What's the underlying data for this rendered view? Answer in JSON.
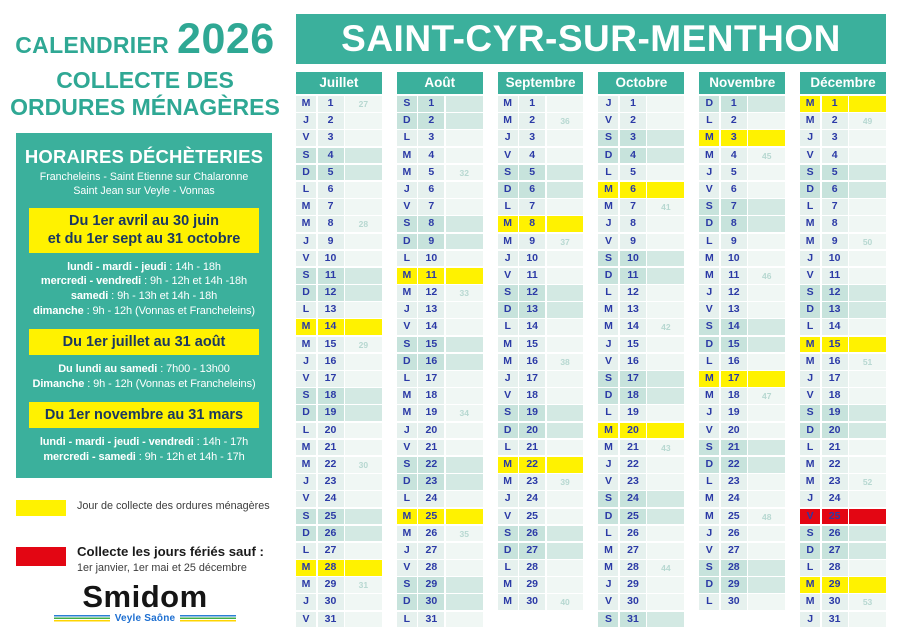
{
  "colors": {
    "teal": "#3BB09C",
    "yellow": "#FFF200",
    "red": "#E30613",
    "navy": "#2B3AA6"
  },
  "left_panel": {
    "title_small": "CALENDRIER",
    "title_year": "2026",
    "subtitle_line1": "COLLECTE DES",
    "subtitle_line2": "ORDURES MÉNAGÈRES",
    "dechetteries": {
      "title": "HORAIRES DÉCHÈTERIES",
      "sites_line1": "Francheleins - Saint Etienne sur Chalaronne",
      "sites_line2": "Saint Jean sur Veyle - Vonnas",
      "periods": [
        {
          "banner": [
            "Du 1er avril au 30 juin",
            "et du 1er sept au 31 octobre"
          ],
          "lines": [
            {
              "bold": "lundi - mardi - jeudi",
              "rest": " : 14h - 18h"
            },
            {
              "bold": "mercredi - vendredi",
              "rest": " : 9h - 12h et 14h -18h"
            },
            {
              "bold": "samedi",
              "rest": " : 9h - 13h et 14h - 18h"
            },
            {
              "bold": "dimanche",
              "rest": " : 9h - 12h (Vonnas et Francheleins)"
            }
          ]
        },
        {
          "banner": [
            "Du 1er juillet au 31 août"
          ],
          "lines": [
            {
              "bold": "Du lundi au samedi",
              "rest": " : 7h00 - 13h00"
            },
            {
              "bold": "Dimanche",
              "rest": " : 9h - 12h (Vonnas et Francheleins)"
            }
          ]
        },
        {
          "banner": [
            "Du 1er novembre au 31 mars"
          ],
          "lines": [
            {
              "bold": "lundi - mardi - jeudi - vendredi",
              "rest": " : 14h - 17h"
            },
            {
              "bold": "mercredi - samedi",
              "rest": " : 9h - 12h et 14h - 17h"
            }
          ]
        }
      ]
    },
    "legend": [
      {
        "color": "#FFF200",
        "swatch": "yellow",
        "text": "Jour de collecte des ordures ménagères"
      },
      {
        "color": "#E30613",
        "swatch": "red",
        "bold": "Collecte les jours fériés sauf :",
        "text": "1er janvier, 1er mai et 25 décembre"
      }
    ],
    "logo": {
      "name": "Smidom",
      "tagline": "Veyle Saône"
    }
  },
  "calendar": {
    "city": "SAINT-CYR-SUR-MENTHON",
    "months": [
      {
        "name": "Juillet",
        "days": [
          {
            "l": "M",
            "n": 1,
            "w": 27
          },
          {
            "l": "J",
            "n": 2
          },
          {
            "l": "V",
            "n": 3
          },
          {
            "l": "S",
            "n": 4,
            "t": "w"
          },
          {
            "l": "D",
            "n": 5,
            "t": "w"
          },
          {
            "l": "L",
            "n": 6
          },
          {
            "l": "M",
            "n": 7
          },
          {
            "l": "M",
            "n": 8,
            "w": 28
          },
          {
            "l": "J",
            "n": 9
          },
          {
            "l": "V",
            "n": 10
          },
          {
            "l": "S",
            "n": 11,
            "t": "w"
          },
          {
            "l": "D",
            "n": 12,
            "t": "w"
          },
          {
            "l": "L",
            "n": 13
          },
          {
            "l": "M",
            "n": 14,
            "t": "c"
          },
          {
            "l": "M",
            "n": 15,
            "w": 29
          },
          {
            "l": "J",
            "n": 16
          },
          {
            "l": "V",
            "n": 17
          },
          {
            "l": "S",
            "n": 18,
            "t": "w"
          },
          {
            "l": "D",
            "n": 19,
            "t": "w"
          },
          {
            "l": "L",
            "n": 20
          },
          {
            "l": "M",
            "n": 21
          },
          {
            "l": "M",
            "n": 22,
            "w": 30
          },
          {
            "l": "J",
            "n": 23
          },
          {
            "l": "V",
            "n": 24
          },
          {
            "l": "S",
            "n": 25,
            "t": "w"
          },
          {
            "l": "D",
            "n": 26,
            "t": "w"
          },
          {
            "l": "L",
            "n": 27
          },
          {
            "l": "M",
            "n": 28,
            "t": "c"
          },
          {
            "l": "M",
            "n": 29,
            "w": 31
          },
          {
            "l": "J",
            "n": 30
          },
          {
            "l": "V",
            "n": 31
          }
        ]
      },
      {
        "name": "Août",
        "days": [
          {
            "l": "S",
            "n": 1,
            "t": "w"
          },
          {
            "l": "D",
            "n": 2,
            "t": "w"
          },
          {
            "l": "L",
            "n": 3
          },
          {
            "l": "M",
            "n": 4
          },
          {
            "l": "M",
            "n": 5,
            "w": 32
          },
          {
            "l": "J",
            "n": 6
          },
          {
            "l": "V",
            "n": 7
          },
          {
            "l": "S",
            "n": 8,
            "t": "w"
          },
          {
            "l": "D",
            "n": 9,
            "t": "w"
          },
          {
            "l": "L",
            "n": 10
          },
          {
            "l": "M",
            "n": 11,
            "t": "c"
          },
          {
            "l": "M",
            "n": 12,
            "w": 33
          },
          {
            "l": "J",
            "n": 13
          },
          {
            "l": "V",
            "n": 14
          },
          {
            "l": "S",
            "n": 15,
            "t": "w"
          },
          {
            "l": "D",
            "n": 16,
            "t": "w"
          },
          {
            "l": "L",
            "n": 17
          },
          {
            "l": "M",
            "n": 18
          },
          {
            "l": "M",
            "n": 19,
            "w": 34
          },
          {
            "l": "J",
            "n": 20
          },
          {
            "l": "V",
            "n": 21
          },
          {
            "l": "S",
            "n": 22,
            "t": "w"
          },
          {
            "l": "D",
            "n": 23,
            "t": "w"
          },
          {
            "l": "L",
            "n": 24
          },
          {
            "l": "M",
            "n": 25,
            "t": "c"
          },
          {
            "l": "M",
            "n": 26,
            "w": 35
          },
          {
            "l": "J",
            "n": 27
          },
          {
            "l": "V",
            "n": 28
          },
          {
            "l": "S",
            "n": 29,
            "t": "w"
          },
          {
            "l": "D",
            "n": 30,
            "t": "w"
          },
          {
            "l": "L",
            "n": 31
          }
        ]
      },
      {
        "name": "Septembre",
        "days": [
          {
            "l": "M",
            "n": 1
          },
          {
            "l": "M",
            "n": 2,
            "w": 36
          },
          {
            "l": "J",
            "n": 3
          },
          {
            "l": "V",
            "n": 4
          },
          {
            "l": "S",
            "n": 5,
            "t": "w"
          },
          {
            "l": "D",
            "n": 6,
            "t": "w"
          },
          {
            "l": "L",
            "n": 7
          },
          {
            "l": "M",
            "n": 8,
            "t": "c"
          },
          {
            "l": "M",
            "n": 9,
            "w": 37
          },
          {
            "l": "J",
            "n": 10
          },
          {
            "l": "V",
            "n": 11
          },
          {
            "l": "S",
            "n": 12,
            "t": "w"
          },
          {
            "l": "D",
            "n": 13,
            "t": "w"
          },
          {
            "l": "L",
            "n": 14
          },
          {
            "l": "M",
            "n": 15
          },
          {
            "l": "M",
            "n": 16,
            "w": 38
          },
          {
            "l": "J",
            "n": 17
          },
          {
            "l": "V",
            "n": 18
          },
          {
            "l": "S",
            "n": 19,
            "t": "w"
          },
          {
            "l": "D",
            "n": 20,
            "t": "w"
          },
          {
            "l": "L",
            "n": 21
          },
          {
            "l": "M",
            "n": 22,
            "t": "c"
          },
          {
            "l": "M",
            "n": 23,
            "w": 39
          },
          {
            "l": "J",
            "n": 24
          },
          {
            "l": "V",
            "n": 25
          },
          {
            "l": "S",
            "n": 26,
            "t": "w"
          },
          {
            "l": "D",
            "n": 27,
            "t": "w"
          },
          {
            "l": "L",
            "n": 28
          },
          {
            "l": "M",
            "n": 29
          },
          {
            "l": "M",
            "n": 30,
            "w": 40
          }
        ]
      },
      {
        "name": "Octobre",
        "days": [
          {
            "l": "J",
            "n": 1
          },
          {
            "l": "V",
            "n": 2
          },
          {
            "l": "S",
            "n": 3,
            "t": "w"
          },
          {
            "l": "D",
            "n": 4,
            "t": "w"
          },
          {
            "l": "L",
            "n": 5
          },
          {
            "l": "M",
            "n": 6,
            "t": "c"
          },
          {
            "l": "M",
            "n": 7,
            "w": 41
          },
          {
            "l": "J",
            "n": 8
          },
          {
            "l": "V",
            "n": 9
          },
          {
            "l": "S",
            "n": 10,
            "t": "w"
          },
          {
            "l": "D",
            "n": 11,
            "t": "w"
          },
          {
            "l": "L",
            "n": 12
          },
          {
            "l": "M",
            "n": 13
          },
          {
            "l": "M",
            "n": 14,
            "w": 42
          },
          {
            "l": "J",
            "n": 15
          },
          {
            "l": "V",
            "n": 16
          },
          {
            "l": "S",
            "n": 17,
            "t": "w"
          },
          {
            "l": "D",
            "n": 18,
            "t": "w"
          },
          {
            "l": "L",
            "n": 19
          },
          {
            "l": "M",
            "n": 20,
            "t": "c"
          },
          {
            "l": "M",
            "n": 21,
            "w": 43
          },
          {
            "l": "J",
            "n": 22
          },
          {
            "l": "V",
            "n": 23
          },
          {
            "l": "S",
            "n": 24,
            "t": "w"
          },
          {
            "l": "D",
            "n": 25,
            "t": "w"
          },
          {
            "l": "L",
            "n": 26
          },
          {
            "l": "M",
            "n": 27
          },
          {
            "l": "M",
            "n": 28,
            "w": 44
          },
          {
            "l": "J",
            "n": 29
          },
          {
            "l": "V",
            "n": 30
          },
          {
            "l": "S",
            "n": 31,
            "t": "w"
          }
        ]
      },
      {
        "name": "Novembre",
        "days": [
          {
            "l": "D",
            "n": 1,
            "t": "w"
          },
          {
            "l": "L",
            "n": 2
          },
          {
            "l": "M",
            "n": 3,
            "t": "c"
          },
          {
            "l": "M",
            "n": 4,
            "w": 45
          },
          {
            "l": "J",
            "n": 5
          },
          {
            "l": "V",
            "n": 6
          },
          {
            "l": "S",
            "n": 7,
            "t": "w"
          },
          {
            "l": "D",
            "n": 8,
            "t": "w"
          },
          {
            "l": "L",
            "n": 9
          },
          {
            "l": "M",
            "n": 10
          },
          {
            "l": "M",
            "n": 11,
            "w": 46
          },
          {
            "l": "J",
            "n": 12
          },
          {
            "l": "V",
            "n": 13
          },
          {
            "l": "S",
            "n": 14,
            "t": "w"
          },
          {
            "l": "D",
            "n": 15,
            "t": "w"
          },
          {
            "l": "L",
            "n": 16
          },
          {
            "l": "M",
            "n": 17,
            "t": "c"
          },
          {
            "l": "M",
            "n": 18,
            "w": 47
          },
          {
            "l": "J",
            "n": 19
          },
          {
            "l": "V",
            "n": 20
          },
          {
            "l": "S",
            "n": 21,
            "t": "w"
          },
          {
            "l": "D",
            "n": 22,
            "t": "w"
          },
          {
            "l": "L",
            "n": 23
          },
          {
            "l": "M",
            "n": 24
          },
          {
            "l": "M",
            "n": 25,
            "w": 48
          },
          {
            "l": "J",
            "n": 26
          },
          {
            "l": "V",
            "n": 27
          },
          {
            "l": "S",
            "n": 28,
            "t": "w"
          },
          {
            "l": "D",
            "n": 29,
            "t": "w"
          },
          {
            "l": "L",
            "n": 30
          }
        ]
      },
      {
        "name": "Décembre",
        "days": [
          {
            "l": "M",
            "n": 1,
            "t": "c"
          },
          {
            "l": "M",
            "n": 2,
            "w": 49
          },
          {
            "l": "J",
            "n": 3
          },
          {
            "l": "V",
            "n": 4
          },
          {
            "l": "S",
            "n": 5,
            "t": "w"
          },
          {
            "l": "D",
            "n": 6,
            "t": "w"
          },
          {
            "l": "L",
            "n": 7
          },
          {
            "l": "M",
            "n": 8
          },
          {
            "l": "M",
            "n": 9,
            "w": 50
          },
          {
            "l": "J",
            "n": 10
          },
          {
            "l": "V",
            "n": 11
          },
          {
            "l": "S",
            "n": 12,
            "t": "w"
          },
          {
            "l": "D",
            "n": 13,
            "t": "w"
          },
          {
            "l": "L",
            "n": 14
          },
          {
            "l": "M",
            "n": 15,
            "t": "c"
          },
          {
            "l": "M",
            "n": 16,
            "w": 51
          },
          {
            "l": "J",
            "n": 17
          },
          {
            "l": "V",
            "n": 18
          },
          {
            "l": "S",
            "n": 19,
            "t": "w"
          },
          {
            "l": "D",
            "n": 20,
            "t": "w"
          },
          {
            "l": "L",
            "n": 21
          },
          {
            "l": "M",
            "n": 22
          },
          {
            "l": "M",
            "n": 23,
            "w": 52
          },
          {
            "l": "J",
            "n": 24
          },
          {
            "l": "V",
            "n": 25,
            "t": "h"
          },
          {
            "l": "S",
            "n": 26,
            "t": "w"
          },
          {
            "l": "D",
            "n": 27,
            "t": "w"
          },
          {
            "l": "L",
            "n": 28
          },
          {
            "l": "M",
            "n": 29,
            "t": "c"
          },
          {
            "l": "M",
            "n": 30,
            "w": 53
          },
          {
            "l": "J",
            "n": 31
          }
        ]
      }
    ]
  }
}
